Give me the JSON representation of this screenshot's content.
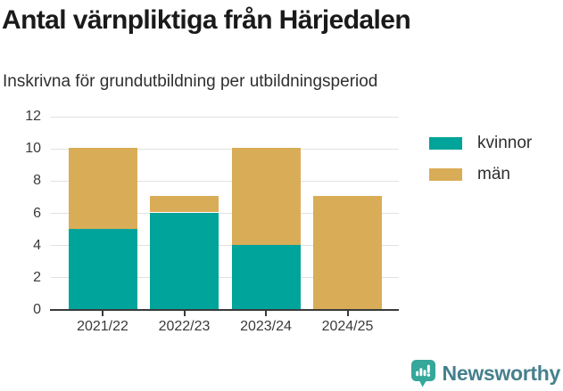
{
  "header": {
    "title": "Antal värnpliktiga från Härjedalen",
    "subtitle": "Inskrivna för grundutbildning per utbildningsperiod"
  },
  "chart_data": {
    "type": "bar",
    "stacked": true,
    "title": "Antal värnpliktiga från Härjedalen",
    "subtitle": "Inskrivna för grundutbildning per utbildningsperiod",
    "categories": [
      "2021/22",
      "2022/23",
      "2023/24",
      "2024/25"
    ],
    "series": [
      {
        "name": "kvinnor",
        "color": "#00a49a",
        "values": [
          5,
          6,
          4,
          0
        ]
      },
      {
        "name": "män",
        "color": "#d9ad57",
        "values": [
          5,
          1,
          6,
          7
        ]
      }
    ],
    "totals": [
      10,
      7,
      10,
      7
    ],
    "xlabel": "",
    "ylabel": "",
    "ylim": [
      0,
      12
    ],
    "yticks": [
      0,
      2,
      4,
      6,
      8,
      10,
      12
    ],
    "grid": true,
    "legend_position": "right"
  },
  "branding": {
    "logo_text": "Newsworthy",
    "logo_icon": "bar-chart-speech-bubble-icon"
  },
  "colors": {
    "kvinnor": "#00a49a",
    "man": "#d9ad57",
    "axis": "#3a3a3a",
    "grid": "#e1e1e1",
    "title": "#1a1a1a",
    "text": "#2f2f2f",
    "label": "#3a3a3a",
    "logo_teal": "#35a79b",
    "logo_text": "#45808d"
  }
}
